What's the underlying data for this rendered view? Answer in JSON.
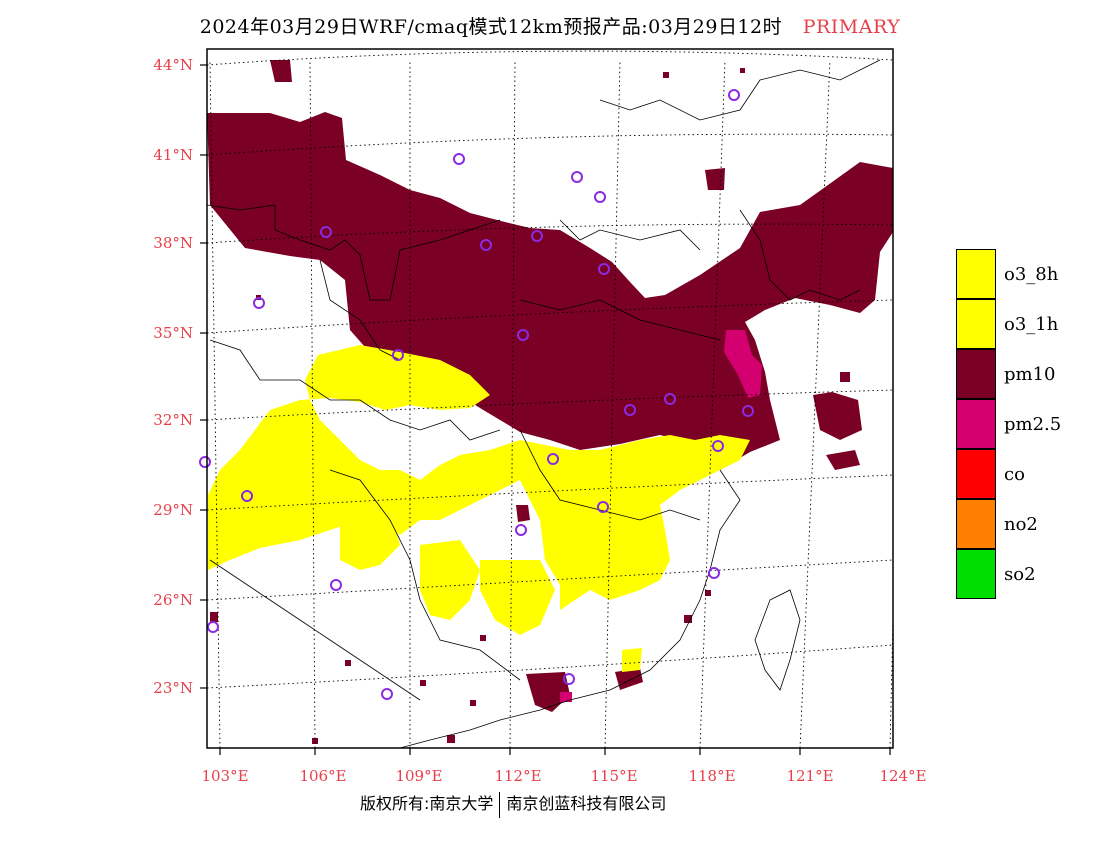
{
  "title": {
    "main": "2024年03月29日WRF/cmaq模式12km预报产品:03月29日12时",
    "tag": "PRIMARY"
  },
  "axes": {
    "lat_labels": [
      "44°N",
      "41°N",
      "38°N",
      "35°N",
      "32°N",
      "29°N",
      "26°N",
      "23°N"
    ],
    "lon_labels": [
      "103°E",
      "106°E",
      "109°E",
      "112°E",
      "115°E",
      "118°E",
      "121°E",
      "124°E"
    ]
  },
  "legend": {
    "items": [
      {
        "label": "o3_8h",
        "color": "#ffff00"
      },
      {
        "label": "o3_1h",
        "color": "#ffff00"
      },
      {
        "label": "pm10",
        "color": "#7a0025"
      },
      {
        "label": "pm2.5",
        "color": "#d4006f"
      },
      {
        "label": "co",
        "color": "#ff0000"
      },
      {
        "label": "no2",
        "color": "#ff8000"
      },
      {
        "label": "so2",
        "color": "#00dd00"
      }
    ]
  },
  "footer": {
    "left": "版权所有:南京大学",
    "right": "南京创蓝科技有限公司"
  }
}
